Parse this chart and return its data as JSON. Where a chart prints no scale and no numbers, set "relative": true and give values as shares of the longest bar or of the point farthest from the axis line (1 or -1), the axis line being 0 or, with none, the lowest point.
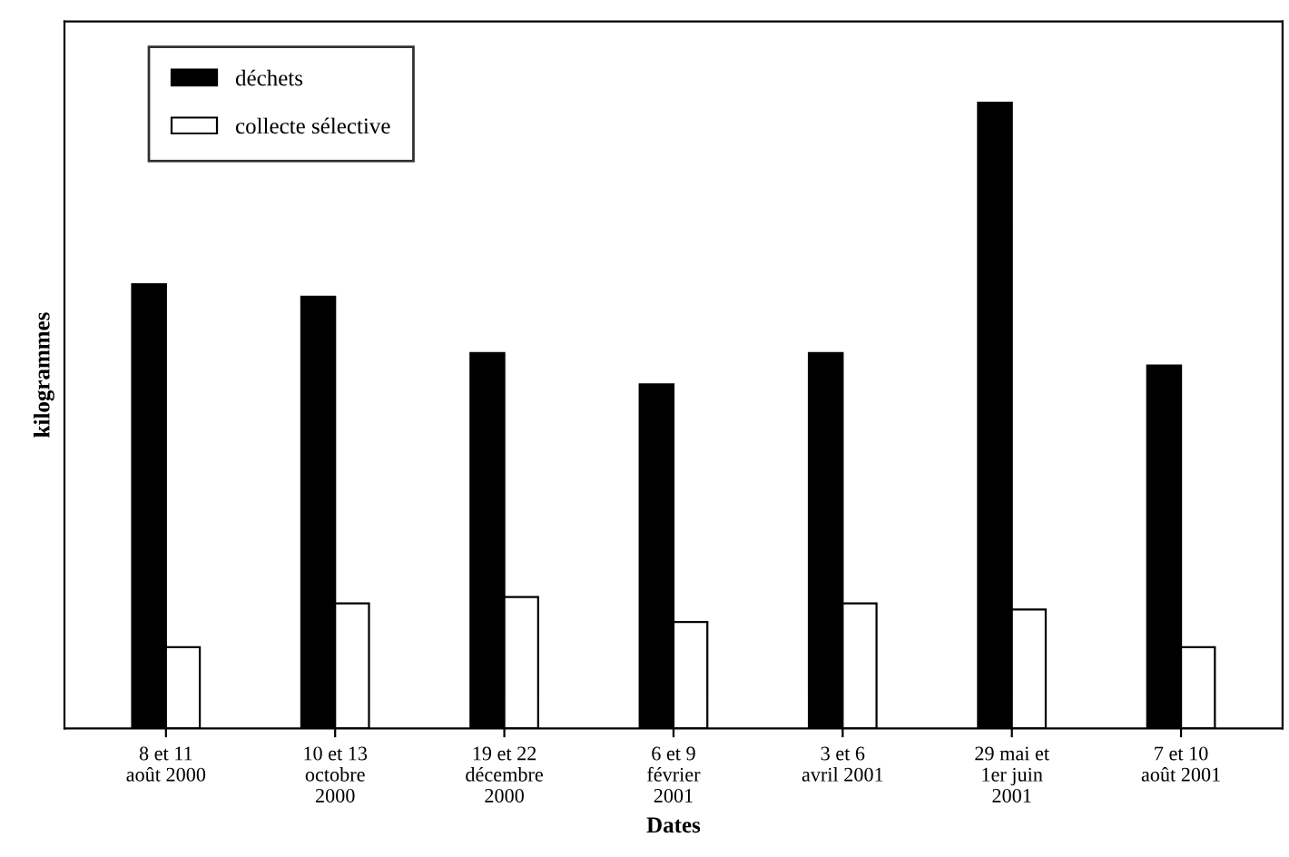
{
  "chart_data": {
    "type": "bar",
    "relative": true,
    "xlabel": "Dates",
    "ylabel": "kilogrammes",
    "categories": [
      "8 et 11\naoût 2000",
      "10 et 13\noctobre\n2000",
      "19 et 22\ndécembre\n2000",
      "6 et 9\nfévrier\n2001",
      "3 et 6\navril 2001",
      "29 mai et\n1er juin\n2001",
      "7 et 10\naoût 2001"
    ],
    "series": [
      {
        "name": "déchets",
        "color": "#000000",
        "values": [
          0.71,
          0.69,
          0.6,
          0.55,
          0.6,
          1,
          0.58
        ]
      },
      {
        "name": "collecte sélective",
        "color": "#ffffff",
        "values": [
          0.13,
          0.2,
          0.21,
          0.17,
          0.2,
          0.19,
          0.13
        ]
      }
    ],
    "legend": "top left",
    "grid": false
  }
}
